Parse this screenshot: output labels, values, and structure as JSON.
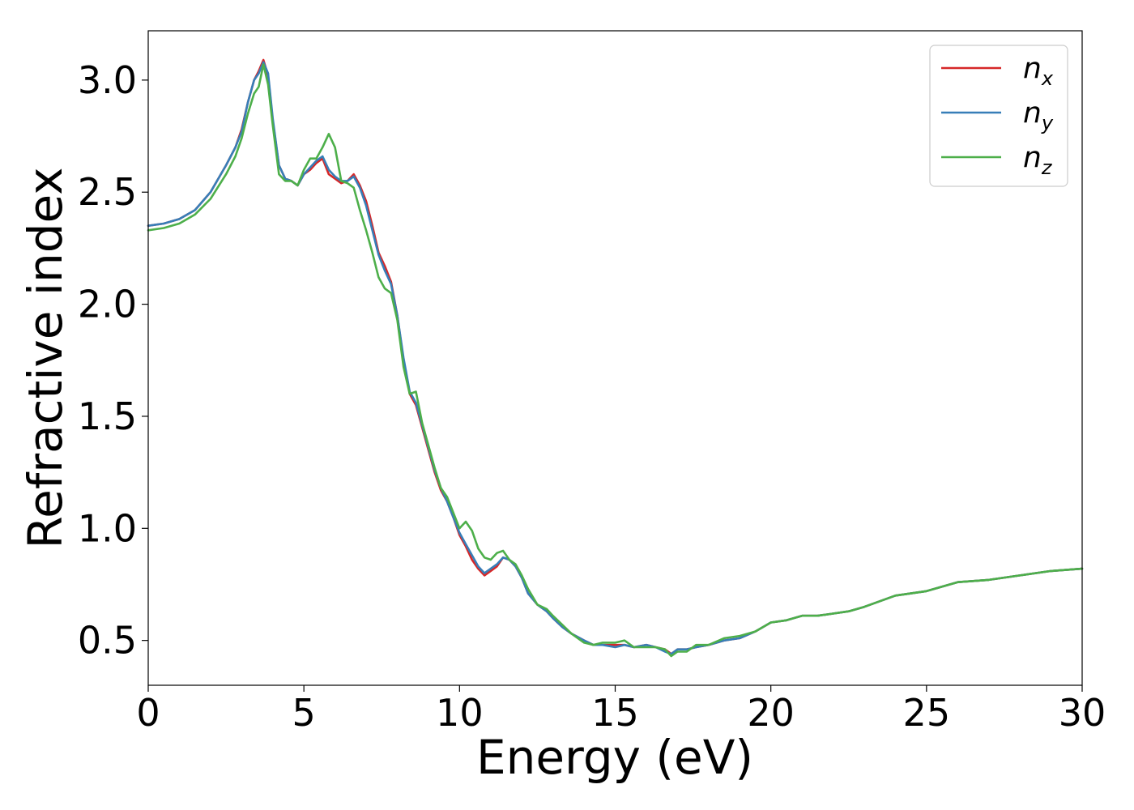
{
  "chart_data": {
    "type": "line",
    "title": "",
    "xlabel": "Energy (eV)",
    "ylabel": "Refractive index",
    "xlim": [
      0,
      30
    ],
    "ylim": [
      0.3,
      3.22
    ],
    "xticks": [
      0,
      5,
      10,
      15,
      20,
      25,
      30
    ],
    "xtick_labels": [
      "0",
      "5",
      "10",
      "15",
      "20",
      "25",
      "30"
    ],
    "yticks": [
      0.5,
      1.0,
      1.5,
      2.0,
      2.5,
      3.0
    ],
    "ytick_labels": [
      "0.5",
      "1.0",
      "1.5",
      "2.0",
      "2.5",
      "3.0"
    ],
    "grid": false,
    "legend_position": "top-right",
    "series": [
      {
        "name": "n",
        "subscript": "x",
        "color": "#d62728",
        "x": [
          0,
          0.5,
          1.0,
          1.5,
          2.0,
          2.5,
          2.8,
          3.0,
          3.2,
          3.4,
          3.55,
          3.7,
          3.85,
          4.0,
          4.2,
          4.4,
          4.6,
          4.8,
          5.0,
          5.2,
          5.4,
          5.6,
          5.8,
          6.0,
          6.2,
          6.4,
          6.6,
          6.8,
          7.0,
          7.2,
          7.4,
          7.6,
          7.8,
          8.0,
          8.2,
          8.4,
          8.6,
          8.8,
          9.0,
          9.2,
          9.4,
          9.6,
          9.8,
          10.0,
          10.2,
          10.4,
          10.6,
          10.8,
          11.0,
          11.2,
          11.4,
          11.6,
          11.8,
          12.0,
          12.2,
          12.5,
          12.8,
          13.0,
          13.3,
          13.6,
          14.0,
          14.3,
          14.6,
          15.0,
          15.3,
          15.6,
          16.0,
          16.3,
          16.6,
          16.8,
          17.0,
          17.3,
          17.6,
          18.0,
          18.5,
          19.0,
          19.5,
          20.0,
          20.5,
          21.0,
          21.5,
          22.0,
          22.5,
          23.0,
          24.0,
          25.0,
          26.0,
          27.0,
          28.0,
          29.0,
          30.0
        ],
        "values": [
          2.35,
          2.36,
          2.38,
          2.42,
          2.5,
          2.62,
          2.7,
          2.78,
          2.9,
          3.0,
          3.04,
          3.09,
          3.02,
          2.82,
          2.62,
          2.56,
          2.55,
          2.53,
          2.58,
          2.6,
          2.63,
          2.65,
          2.58,
          2.56,
          2.54,
          2.55,
          2.58,
          2.53,
          2.46,
          2.35,
          2.23,
          2.17,
          2.1,
          1.95,
          1.75,
          1.6,
          1.55,
          1.45,
          1.35,
          1.25,
          1.17,
          1.12,
          1.05,
          0.97,
          0.92,
          0.86,
          0.82,
          0.79,
          0.81,
          0.83,
          0.87,
          0.86,
          0.83,
          0.78,
          0.71,
          0.66,
          0.63,
          0.6,
          0.56,
          0.53,
          0.5,
          0.48,
          0.48,
          0.48,
          0.48,
          0.47,
          0.48,
          0.47,
          0.46,
          0.44,
          0.46,
          0.46,
          0.47,
          0.48,
          0.5,
          0.51,
          0.54,
          0.58,
          0.59,
          0.61,
          0.61,
          0.62,
          0.63,
          0.65,
          0.7,
          0.72,
          0.76,
          0.77,
          0.79,
          0.81,
          0.82
        ]
      },
      {
        "name": "n",
        "subscript": "y",
        "color": "#377eb8",
        "x": [
          0,
          0.5,
          1.0,
          1.5,
          2.0,
          2.5,
          2.8,
          3.0,
          3.2,
          3.4,
          3.55,
          3.7,
          3.85,
          4.0,
          4.2,
          4.4,
          4.6,
          4.8,
          5.0,
          5.2,
          5.4,
          5.6,
          5.8,
          6.0,
          6.2,
          6.4,
          6.6,
          6.8,
          7.0,
          7.2,
          7.4,
          7.6,
          7.8,
          8.0,
          8.2,
          8.4,
          8.6,
          8.8,
          9.0,
          9.2,
          9.4,
          9.6,
          9.8,
          10.0,
          10.2,
          10.4,
          10.6,
          10.8,
          11.0,
          11.2,
          11.4,
          11.6,
          11.8,
          12.0,
          12.2,
          12.5,
          12.8,
          13.0,
          13.3,
          13.6,
          14.0,
          14.3,
          14.6,
          15.0,
          15.3,
          15.6,
          16.0,
          16.3,
          16.6,
          16.8,
          17.0,
          17.3,
          17.6,
          18.0,
          18.5,
          19.0,
          19.5,
          20.0,
          20.5,
          21.0,
          21.5,
          22.0,
          22.5,
          23.0,
          24.0,
          25.0,
          26.0,
          27.0,
          28.0,
          29.0,
          30.0
        ],
        "values": [
          2.35,
          2.36,
          2.38,
          2.42,
          2.5,
          2.62,
          2.7,
          2.77,
          2.9,
          3.0,
          3.03,
          3.08,
          3.03,
          2.83,
          2.62,
          2.56,
          2.55,
          2.53,
          2.58,
          2.61,
          2.64,
          2.66,
          2.6,
          2.57,
          2.55,
          2.55,
          2.57,
          2.52,
          2.44,
          2.33,
          2.22,
          2.15,
          2.09,
          1.95,
          1.76,
          1.61,
          1.56,
          1.46,
          1.36,
          1.26,
          1.18,
          1.12,
          1.05,
          0.98,
          0.93,
          0.88,
          0.83,
          0.8,
          0.82,
          0.84,
          0.87,
          0.86,
          0.83,
          0.78,
          0.71,
          0.66,
          0.63,
          0.6,
          0.56,
          0.53,
          0.5,
          0.48,
          0.48,
          0.47,
          0.48,
          0.47,
          0.48,
          0.47,
          0.45,
          0.44,
          0.46,
          0.46,
          0.47,
          0.48,
          0.5,
          0.51,
          0.54,
          0.58,
          0.59,
          0.61,
          0.61,
          0.62,
          0.63,
          0.65,
          0.7,
          0.72,
          0.76,
          0.77,
          0.79,
          0.81,
          0.82
        ]
      },
      {
        "name": "n",
        "subscript": "z",
        "color": "#4daf4a",
        "x": [
          0,
          0.5,
          1.0,
          1.5,
          2.0,
          2.5,
          2.8,
          3.0,
          3.2,
          3.4,
          3.55,
          3.7,
          3.85,
          4.0,
          4.2,
          4.4,
          4.6,
          4.8,
          5.0,
          5.2,
          5.4,
          5.6,
          5.8,
          6.0,
          6.2,
          6.4,
          6.6,
          6.8,
          7.0,
          7.2,
          7.4,
          7.6,
          7.8,
          8.0,
          8.2,
          8.4,
          8.6,
          8.8,
          9.0,
          9.2,
          9.4,
          9.6,
          9.8,
          10.0,
          10.2,
          10.4,
          10.6,
          10.8,
          11.0,
          11.2,
          11.4,
          11.6,
          11.8,
          12.0,
          12.2,
          12.5,
          12.8,
          13.0,
          13.3,
          13.6,
          14.0,
          14.3,
          14.6,
          15.0,
          15.3,
          15.6,
          16.0,
          16.3,
          16.6,
          16.8,
          17.0,
          17.3,
          17.6,
          18.0,
          18.5,
          19.0,
          19.5,
          20.0,
          20.5,
          21.0,
          21.5,
          22.0,
          22.5,
          23.0,
          24.0,
          25.0,
          26.0,
          27.0,
          28.0,
          29.0,
          30.0
        ],
        "values": [
          2.33,
          2.34,
          2.36,
          2.4,
          2.47,
          2.58,
          2.66,
          2.74,
          2.85,
          2.94,
          2.97,
          3.07,
          2.98,
          2.8,
          2.58,
          2.55,
          2.55,
          2.53,
          2.6,
          2.65,
          2.65,
          2.7,
          2.76,
          2.7,
          2.55,
          2.54,
          2.52,
          2.42,
          2.33,
          2.23,
          2.12,
          2.07,
          2.05,
          1.93,
          1.72,
          1.6,
          1.61,
          1.47,
          1.37,
          1.27,
          1.18,
          1.14,
          1.07,
          1.0,
          1.03,
          0.99,
          0.91,
          0.87,
          0.86,
          0.89,
          0.9,
          0.86,
          0.84,
          0.79,
          0.73,
          0.66,
          0.64,
          0.61,
          0.57,
          0.53,
          0.49,
          0.48,
          0.49,
          0.49,
          0.5,
          0.47,
          0.47,
          0.47,
          0.46,
          0.43,
          0.45,
          0.45,
          0.48,
          0.48,
          0.51,
          0.52,
          0.54,
          0.58,
          0.59,
          0.61,
          0.61,
          0.62,
          0.63,
          0.65,
          0.7,
          0.72,
          0.76,
          0.77,
          0.79,
          0.81,
          0.82
        ]
      }
    ]
  }
}
